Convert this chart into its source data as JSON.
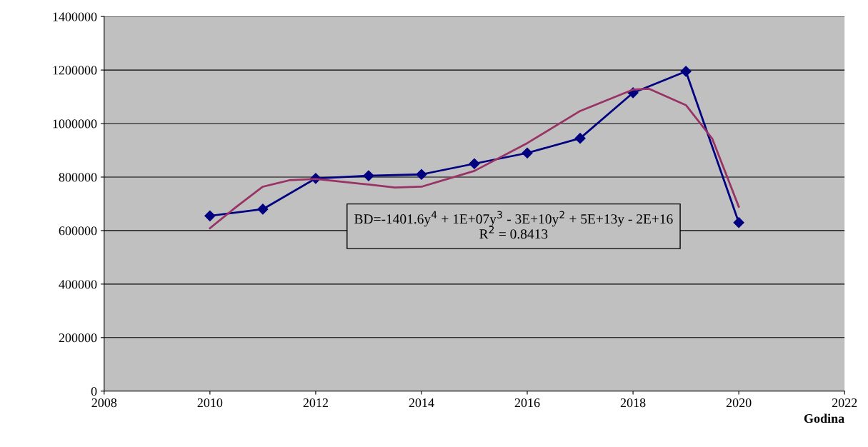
{
  "chart_data": {
    "type": "line",
    "xlabel": "Godina",
    "series": [
      {
        "color": "#000080",
        "marker": "diamond",
        "x": [
          2010,
          2011,
          2012,
          2013,
          2014,
          2015,
          2016,
          2017,
          2018,
          2019,
          2020
        ],
        "values": [
          655000,
          680000,
          795000,
          805000,
          810000,
          850000,
          890000,
          945000,
          1115000,
          1195000,
          630000
        ]
      },
      {
        "color": "#993366",
        "marker": "none",
        "x": [
          2010,
          2010.5,
          2011,
          2011.5,
          2012,
          2013,
          2013.5,
          2014,
          2015,
          2016,
          2017,
          2018,
          2018.3,
          2019,
          2019.5,
          2020
        ],
        "values": [
          609000,
          689000,
          764000,
          788000,
          793000,
          772000,
          761000,
          764000,
          823000,
          927000,
          1047000,
          1127000,
          1130000,
          1069000,
          943000,
          689000
        ]
      }
    ],
    "annotations": [
      "BD=-1401.6y$^{4}$ + 1E+07y$^{3}$ - 3E+10y$^{2}$ + 5E+13y - 2E+16\nR$^{2}$ = 0.8413"
    ],
    "xlim": [
      2008,
      2022
    ],
    "xticks": [
      2008,
      2010,
      2012,
      2014,
      2016,
      2018,
      2020,
      2022
    ],
    "ylim": [
      0,
      1400000
    ],
    "yticks": [
      0,
      200000,
      400000,
      600000,
      800000,
      1000000,
      1200000,
      1400000
    ],
    "grid": "y",
    "legend": false
  }
}
